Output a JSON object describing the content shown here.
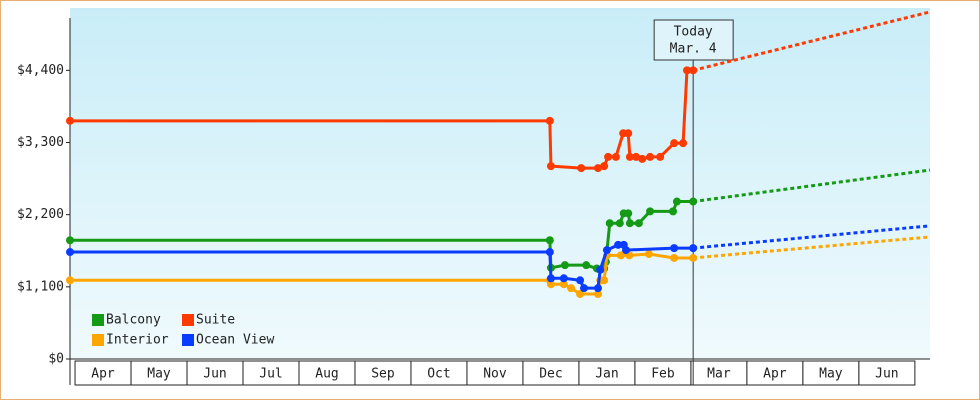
{
  "chart_data": {
    "type": "line",
    "xlim": [
      -0.09,
      15.27
    ],
    "ylim": [
      0,
      5350
    ],
    "xticks": [
      {
        "value": 0.5,
        "label": "Apr"
      },
      {
        "value": 1.5,
        "label": "May"
      },
      {
        "value": 2.5,
        "label": "Jun"
      },
      {
        "value": 3.5,
        "label": "Jul"
      },
      {
        "value": 4.5,
        "label": "Aug"
      },
      {
        "value": 5.5,
        "label": "Sep"
      },
      {
        "value": 6.5,
        "label": "Oct"
      },
      {
        "value": 7.5,
        "label": "Nov"
      },
      {
        "value": 8.5,
        "label": "Dec"
      },
      {
        "value": 9.5,
        "label": "Jan"
      },
      {
        "value": 10.5,
        "label": "Feb"
      },
      {
        "value": 11.5,
        "label": "Mar"
      },
      {
        "value": 12.5,
        "label": "Apr"
      },
      {
        "value": 13.5,
        "label": "May"
      },
      {
        "value": 14.5,
        "label": "Jun"
      }
    ],
    "yticks": [
      {
        "value": 0,
        "label": "$0"
      },
      {
        "value": 1100,
        "label": "$1,100"
      },
      {
        "value": 2200,
        "label": "$2,200"
      },
      {
        "value": 3300,
        "label": "$3,300"
      },
      {
        "value": 4400,
        "label": "$4,400"
      }
    ],
    "annotation": {
      "x": 11.04,
      "lines": [
        "Today",
        "Mar. 4"
      ]
    },
    "forecast_x": [
      11.04,
      15.27
    ],
    "series": [
      {
        "name": "Balcony",
        "color": "#159a15",
        "x": [
          -0.09,
          8.48,
          8.5,
          8.75,
          9.13,
          9.32,
          9.45,
          9.48,
          9.55,
          9.73,
          9.8,
          9.88,
          9.91,
          10.07,
          10.27,
          10.68,
          10.75,
          11.04
        ],
        "values": [
          1810,
          1810,
          1390,
          1430,
          1430,
          1380,
          1380,
          1480,
          2070,
          2070,
          2220,
          2220,
          2070,
          2070,
          2250,
          2250,
          2400,
          2400
        ],
        "forecast": [
          2400,
          2880
        ]
      },
      {
        "name": "Suite",
        "color": "#ff3a00",
        "x": [
          -0.09,
          8.48,
          8.5,
          9.04,
          9.34,
          9.45,
          9.52,
          9.66,
          9.79,
          9.88,
          9.91,
          10.02,
          10.13,
          10.27,
          10.45,
          10.7,
          10.86,
          10.93,
          11.04
        ],
        "values": [
          3630,
          3630,
          2940,
          2910,
          2910,
          2940,
          3080,
          3080,
          3440,
          3440,
          3080,
          3080,
          3050,
          3080,
          3080,
          3290,
          3290,
          4400,
          4400
        ],
        "forecast": [
          4400,
          5290
        ]
      },
      {
        "name": "Interior",
        "color": "#ffa500",
        "x": [
          -0.09,
          8.48,
          8.5,
          8.73,
          8.86,
          9.02,
          9.34,
          9.38,
          9.45,
          9.5,
          9.75,
          9.9,
          10.25,
          10.7,
          11.04
        ],
        "values": [
          1200,
          1200,
          1140,
          1140,
          1080,
          990,
          990,
          1200,
          1200,
          1580,
          1580,
          1580,
          1600,
          1540,
          1540
        ],
        "forecast": [
          1540,
          1860
        ]
      },
      {
        "name": "Ocean View",
        "color": "#0a3cff",
        "x": [
          -0.09,
          8.48,
          8.5,
          8.73,
          9.02,
          9.09,
          9.34,
          9.38,
          9.5,
          9.7,
          9.8,
          9.84,
          10.7,
          11.04
        ],
        "values": [
          1630,
          1630,
          1230,
          1230,
          1200,
          1080,
          1080,
          1360,
          1660,
          1740,
          1740,
          1660,
          1690,
          1690
        ],
        "forecast": [
          1690,
          2030
        ]
      }
    ]
  }
}
